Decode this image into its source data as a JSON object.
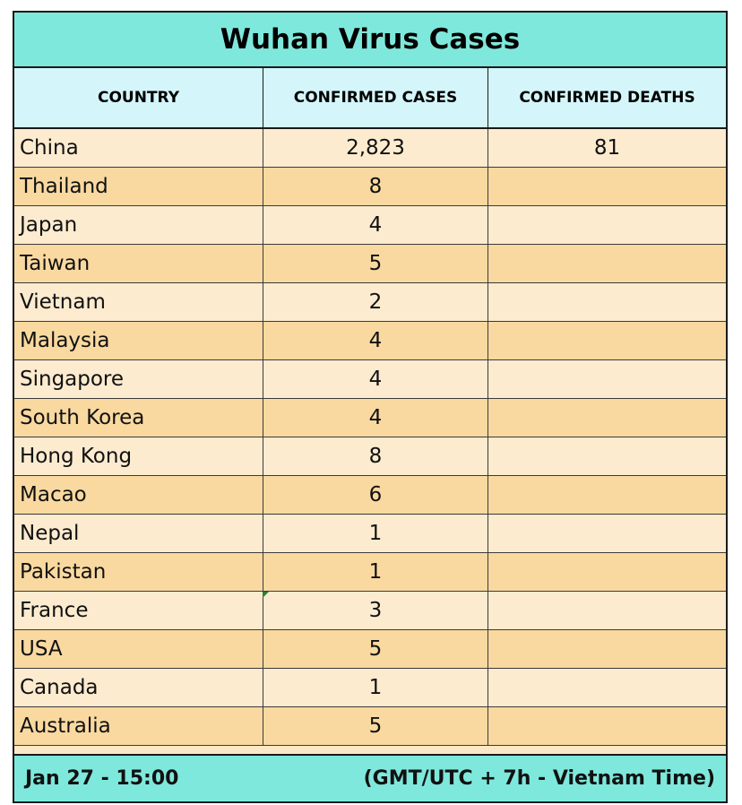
{
  "title": "Wuhan Virus Cases",
  "headers": {
    "country": "COUNTRY",
    "cases": "CONFIRMED CASES",
    "deaths": "CONFIRMED DEATHS"
  },
  "rows": [
    {
      "country": "China",
      "cases": "2,823",
      "deaths": "81"
    },
    {
      "country": "Thailand",
      "cases": "8",
      "deaths": ""
    },
    {
      "country": "Japan",
      "cases": "4",
      "deaths": ""
    },
    {
      "country": "Taiwan",
      "cases": "5",
      "deaths": ""
    },
    {
      "country": "Vietnam",
      "cases": "2",
      "deaths": ""
    },
    {
      "country": "Malaysia",
      "cases": "4",
      "deaths": ""
    },
    {
      "country": "Singapore",
      "cases": "4",
      "deaths": ""
    },
    {
      "country": "South Korea",
      "cases": "4",
      "deaths": ""
    },
    {
      "country": "Hong Kong",
      "cases": "8",
      "deaths": ""
    },
    {
      "country": "Macao",
      "cases": "6",
      "deaths": ""
    },
    {
      "country": "Nepal",
      "cases": "1",
      "deaths": ""
    },
    {
      "country": "Pakistan",
      "cases": "1",
      "deaths": ""
    },
    {
      "country": "France",
      "cases": "3",
      "deaths": ""
    },
    {
      "country": "USA",
      "cases": "5",
      "deaths": ""
    },
    {
      "country": "Canada",
      "cases": "1",
      "deaths": ""
    },
    {
      "country": "Australia",
      "cases": "5",
      "deaths": ""
    }
  ],
  "footer": {
    "date": "Jan 27 - 15:00",
    "timezone": "(GMT/UTC + 7h - Vietnam Time)"
  },
  "colors": {
    "title_bg": "#7fe8dc",
    "header_bg": "#d4f6fb",
    "row_light": "#fcebcf",
    "row_dark": "#f9d9a0",
    "footer_bg": "#7fe8dc"
  }
}
